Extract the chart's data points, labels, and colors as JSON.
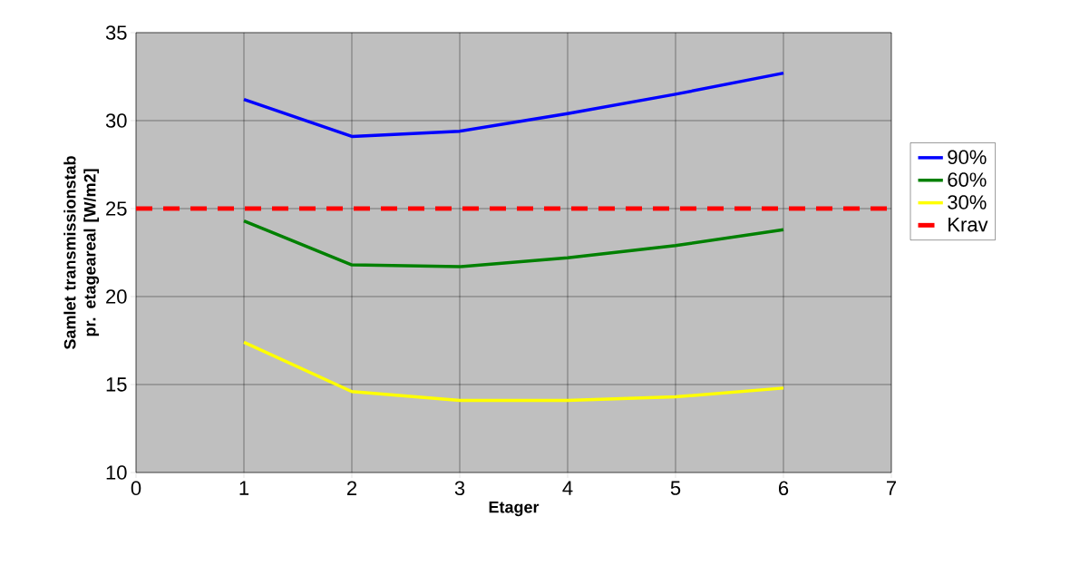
{
  "chart_data": {
    "type": "line",
    "xlabel": "Etager",
    "ylabel": "Samlet transmissionstab pr. etageareal [W/m2]",
    "x": [
      1,
      2,
      3,
      4,
      5,
      6
    ],
    "series": [
      {
        "name": "90%",
        "color": "#0000ff",
        "values": [
          31.2,
          29.1,
          29.4,
          30.4,
          31.5,
          32.7
        ]
      },
      {
        "name": "60%",
        "color": "#008000",
        "values": [
          24.3,
          21.8,
          21.7,
          22.2,
          22.9,
          23.8
        ]
      },
      {
        "name": "30%",
        "color": "#ffff00",
        "values": [
          17.4,
          14.6,
          14.1,
          14.1,
          14.3,
          14.8
        ]
      },
      {
        "name": "Krav",
        "color": "#ff0000",
        "x": [
          0,
          7
        ],
        "values": [
          25,
          25
        ],
        "line_style": "dashed"
      }
    ],
    "xlim": [
      0,
      7
    ],
    "ylim": [
      10,
      35
    ],
    "xticks": [
      0,
      1,
      2,
      3,
      4,
      5,
      6,
      7
    ],
    "yticks": [
      10,
      15,
      20,
      25,
      30,
      35
    ],
    "grid": true,
    "legend": "right",
    "marker": "none"
  }
}
